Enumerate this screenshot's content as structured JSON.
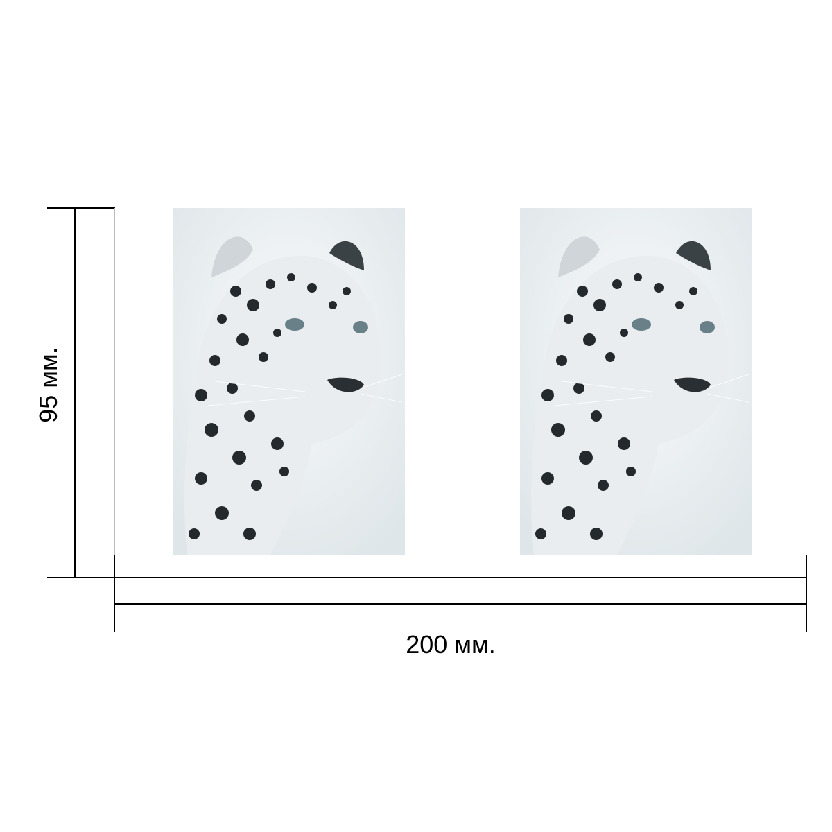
{
  "dimensions": {
    "height_label": "95 мм.",
    "width_label": "200 мм."
  },
  "images": [
    {
      "subject": "leopard-photo"
    },
    {
      "subject": "leopard-photo"
    }
  ],
  "colors": {
    "line": "#000000",
    "photo_background": "#f3f6f7"
  }
}
